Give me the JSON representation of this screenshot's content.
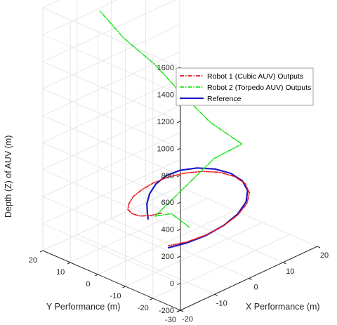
{
  "chart_data": {
    "type": "line",
    "title": "",
    "xlabel": "X Performance (m)",
    "ylabel": "Y Performance (m)",
    "zlabel": "Depth (Z) of AUV (m)",
    "xlim": [
      -20,
      20
    ],
    "ylim": [
      -30,
      20
    ],
    "zlim": [
      -200,
      1600
    ],
    "x_ticks": [
      -20,
      -10,
      0,
      10,
      20
    ],
    "y_ticks": [
      -30,
      -20,
      -10,
      0,
      10,
      20
    ],
    "z_ticks": [
      -200,
      0,
      200,
      400,
      600,
      800,
      1000,
      1200,
      1400,
      1600
    ],
    "grid": true,
    "legend_position": "top-right",
    "colors": {
      "robot1": "#e8141e",
      "robot2": "#22e622",
      "reference": "#1c16c8"
    },
    "series": [
      {
        "name": "Robot 1 (Cubic AUV) Outputs",
        "style": "dash-dot",
        "points": [
          [
            -8.6,
            -9.0,
            200
          ],
          [
            -10.9,
            -8.0,
            200
          ],
          [
            -12.6,
            -6.2,
            200
          ],
          [
            -13.0,
            -3.8,
            200
          ],
          [
            -12.2,
            -1.2,
            200
          ],
          [
            -10.2,
            0.9,
            200
          ],
          [
            -7.2,
            3.0,
            200
          ],
          [
            -3.7,
            4.2,
            200
          ],
          [
            0.0,
            4.7,
            200
          ],
          [
            3.9,
            4.3,
            200
          ],
          [
            7.6,
            2.8,
            200
          ],
          [
            10.7,
            0.1,
            200
          ],
          [
            12.8,
            -3.6,
            200
          ],
          [
            13.5,
            -8.0,
            200
          ],
          [
            12.7,
            -12.8,
            200
          ],
          [
            10.3,
            -17.4,
            200
          ],
          [
            6.4,
            -21.3,
            200
          ],
          [
            1.3,
            -24.2,
            200
          ],
          [
            -4.3,
            -25.8,
            200
          ],
          [
            -9.7,
            -26.2,
            200
          ],
          [
            -14.5,
            -25.4,
            200
          ],
          [
            -18.3,
            -23.5,
            200
          ]
        ]
      },
      {
        "name": "Robot 2 (Torpedo AUV) Outputs",
        "style": "dash-dot",
        "points": [
          [
            -9.3,
            -19.9,
            200
          ],
          [
            -11.4,
            -16.0,
            290
          ],
          [
            -13.2,
            -12.3,
            260
          ],
          [
            10.0,
            -5.0,
            350
          ],
          [
            13.7,
            -10.4,
            460
          ],
          [
            10.2,
            -3.2,
            600
          ],
          [
            6.8,
            3.1,
            800
          ],
          [
            3.6,
            8.6,
            1000
          ],
          [
            -0.9,
            14.5,
            1200
          ],
          [
            -4.3,
            18.7,
            1400
          ]
        ]
      },
      {
        "name": "Reference",
        "style": "solid",
        "points": [
          [
            -12.4,
            -8.8,
            200
          ],
          [
            -10.3,
            -5.9,
            200
          ],
          [
            -7.7,
            -2.5,
            200
          ],
          [
            -4.1,
            1.0,
            200
          ],
          [
            0.0,
            3.8,
            200
          ],
          [
            4.1,
            5.2,
            200
          ],
          [
            7.8,
            4.8,
            200
          ],
          [
            11.0,
            2.5,
            200
          ],
          [
            13.2,
            -1.3,
            200
          ],
          [
            14.0,
            -6.0,
            200
          ],
          [
            13.2,
            -11.2,
            200
          ],
          [
            10.8,
            -16.1,
            200
          ],
          [
            6.9,
            -20.4,
            200
          ],
          [
            1.8,
            -23.7,
            200
          ],
          [
            -3.9,
            -25.7,
            200
          ],
          [
            -9.6,
            -26.4,
            200
          ],
          [
            -14.8,
            -25.8,
            200
          ],
          [
            -18.9,
            -24.3,
            200
          ]
        ]
      }
    ]
  }
}
